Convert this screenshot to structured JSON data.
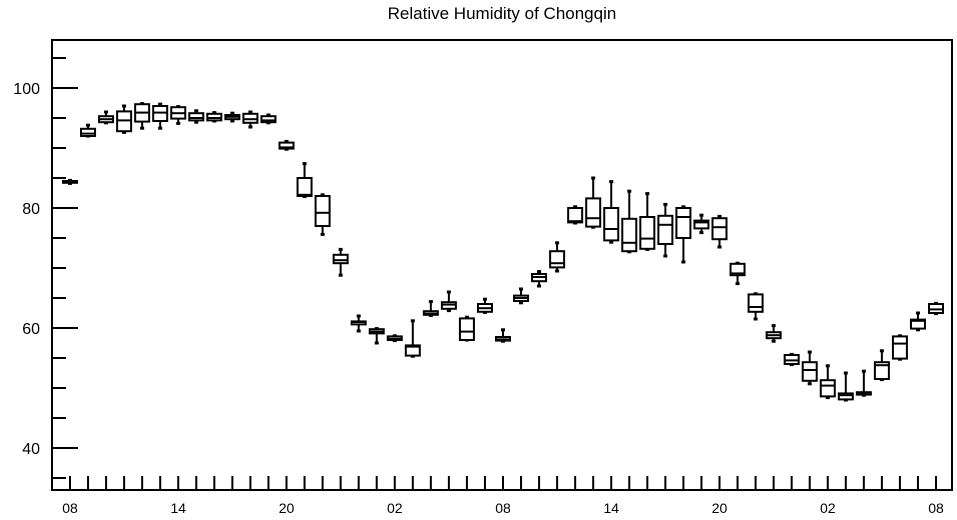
{
  "chart_data": {
    "type": "box",
    "title": "Relative Humidity of Chongqin",
    "xlabel": "",
    "ylabel": "",
    "ylim": [
      33,
      108
    ],
    "xlim": [
      0,
      48
    ],
    "grid": false,
    "y_ticks": [
      40,
      60,
      80,
      100
    ],
    "x_tick_labels": [
      {
        "pos": 0,
        "label": "08"
      },
      {
        "pos": 6,
        "label": "14"
      },
      {
        "pos": 12,
        "label": "20"
      },
      {
        "pos": 18,
        "label": "02"
      },
      {
        "pos": 24,
        "label": "08"
      },
      {
        "pos": 30,
        "label": "14"
      },
      {
        "pos": 36,
        "label": "20"
      },
      {
        "pos": 42,
        "label": "02"
      },
      {
        "pos": 48,
        "label": "08"
      }
    ],
    "boxes": [
      {
        "t": 0,
        "min": 84.1,
        "q1": 84.2,
        "med": 84.3,
        "q3": 84.5,
        "max": 84.6
      },
      {
        "t": 1,
        "min": 92.0,
        "q1": 92.0,
        "med": 92.4,
        "q3": 93.2,
        "max": 93.8
      },
      {
        "t": 2,
        "min": 94.2,
        "q1": 94.3,
        "med": 94.8,
        "q3": 95.3,
        "max": 96.0
      },
      {
        "t": 3,
        "min": 92.6,
        "q1": 92.8,
        "med": 94.6,
        "q3": 96.1,
        "max": 97.0
      },
      {
        "t": 4,
        "min": 93.3,
        "q1": 94.4,
        "med": 95.9,
        "q3": 97.3,
        "max": 97.4
      },
      {
        "t": 5,
        "min": 93.3,
        "q1": 94.5,
        "med": 95.9,
        "q3": 97.0,
        "max": 97.3
      },
      {
        "t": 6,
        "min": 94.1,
        "q1": 94.9,
        "med": 95.8,
        "q3": 96.8,
        "max": 96.9
      },
      {
        "t": 7,
        "min": 94.3,
        "q1": 94.6,
        "med": 95.0,
        "q3": 95.8,
        "max": 96.2
      },
      {
        "t": 8,
        "min": 94.5,
        "q1": 94.6,
        "med": 95.0,
        "q3": 95.7,
        "max": 95.9
      },
      {
        "t": 9,
        "min": 94.5,
        "q1": 94.8,
        "med": 95.2,
        "q3": 95.5,
        "max": 95.8
      },
      {
        "t": 10,
        "min": 93.5,
        "q1": 94.2,
        "med": 94.8,
        "q3": 95.7,
        "max": 96.0
      },
      {
        "t": 11,
        "min": 94.2,
        "q1": 94.3,
        "med": 94.6,
        "q3": 95.3,
        "max": 95.5
      },
      {
        "t": 12,
        "min": 89.8,
        "q1": 89.9,
        "med": 90.1,
        "q3": 90.9,
        "max": 91.1
      },
      {
        "t": 13,
        "min": 81.9,
        "q1": 82.0,
        "med": 82.2,
        "q3": 85.0,
        "max": 87.4
      },
      {
        "t": 14,
        "min": 75.6,
        "q1": 77.0,
        "med": 79.2,
        "q3": 82.0,
        "max": 82.2
      },
      {
        "t": 15,
        "min": 68.8,
        "q1": 70.8,
        "med": 71.3,
        "q3": 72.2,
        "max": 73.1
      },
      {
        "t": 16,
        "min": 59.5,
        "q1": 60.6,
        "med": 61.0,
        "q3": 61.1,
        "max": 62.0
      },
      {
        "t": 17,
        "min": 57.5,
        "q1": 59.1,
        "med": 59.4,
        "q3": 59.8,
        "max": 59.9
      },
      {
        "t": 18,
        "min": 57.9,
        "q1": 58.0,
        "med": 58.2,
        "q3": 58.6,
        "max": 58.7
      },
      {
        "t": 19,
        "min": 55.3,
        "q1": 55.4,
        "med": 56.9,
        "q3": 57.1,
        "max": 61.2
      },
      {
        "t": 20,
        "min": 62.1,
        "q1": 62.2,
        "med": 62.4,
        "q3": 62.8,
        "max": 64.4
      },
      {
        "t": 21,
        "min": 62.9,
        "q1": 63.2,
        "med": 63.9,
        "q3": 64.3,
        "max": 66.0
      },
      {
        "t": 22,
        "min": 58.0,
        "q1": 58.0,
        "med": 59.4,
        "q3": 61.6,
        "max": 61.8
      },
      {
        "t": 23,
        "min": 62.6,
        "q1": 62.7,
        "med": 63.3,
        "q3": 64.0,
        "max": 64.8
      },
      {
        "t": 24,
        "min": 57.8,
        "q1": 57.9,
        "med": 58.1,
        "q3": 58.5,
        "max": 59.7
      },
      {
        "t": 25,
        "min": 64.2,
        "q1": 64.5,
        "med": 65.0,
        "q3": 65.4,
        "max": 66.5
      },
      {
        "t": 26,
        "min": 67.0,
        "q1": 67.8,
        "med": 68.5,
        "q3": 69.0,
        "max": 69.4
      },
      {
        "t": 27,
        "min": 69.5,
        "q1": 70.1,
        "med": 70.8,
        "q3": 72.8,
        "max": 74.2
      },
      {
        "t": 28,
        "min": 77.5,
        "q1": 77.6,
        "med": 77.8,
        "q3": 80.0,
        "max": 80.2
      },
      {
        "t": 29,
        "min": 76.8,
        "q1": 76.9,
        "med": 78.3,
        "q3": 81.6,
        "max": 85.0
      },
      {
        "t": 30,
        "min": 74.3,
        "q1": 74.6,
        "med": 76.5,
        "q3": 80.0,
        "max": 84.4
      },
      {
        "t": 31,
        "min": 72.7,
        "q1": 72.8,
        "med": 74.2,
        "q3": 78.2,
        "max": 82.8
      },
      {
        "t": 32,
        "min": 73.1,
        "q1": 73.2,
        "med": 74.9,
        "q3": 78.5,
        "max": 82.4
      },
      {
        "t": 33,
        "min": 72.0,
        "q1": 74.0,
        "med": 77.2,
        "q3": 78.7,
        "max": 80.6
      },
      {
        "t": 34,
        "min": 71.0,
        "q1": 75.0,
        "med": 78.5,
        "q3": 80.0,
        "max": 80.2
      },
      {
        "t": 35,
        "min": 75.9,
        "q1": 76.6,
        "med": 77.6,
        "q3": 77.9,
        "max": 78.8
      },
      {
        "t": 36,
        "min": 73.5,
        "q1": 74.8,
        "med": 76.8,
        "q3": 78.3,
        "max": 78.6
      },
      {
        "t": 37,
        "min": 67.4,
        "q1": 68.8,
        "med": 69.1,
        "q3": 70.7,
        "max": 70.8
      },
      {
        "t": 38,
        "min": 61.5,
        "q1": 62.7,
        "med": 63.5,
        "q3": 65.6,
        "max": 65.7
      },
      {
        "t": 39,
        "min": 57.8,
        "q1": 58.3,
        "med": 58.8,
        "q3": 59.3,
        "max": 60.4
      },
      {
        "t": 40,
        "min": 53.9,
        "q1": 54.0,
        "med": 54.6,
        "q3": 55.5,
        "max": 55.6
      },
      {
        "t": 41,
        "min": 50.7,
        "q1": 51.2,
        "med": 53.0,
        "q3": 54.3,
        "max": 56.0
      },
      {
        "t": 42,
        "min": 48.4,
        "q1": 48.6,
        "med": 50.4,
        "q3": 51.3,
        "max": 53.7
      },
      {
        "t": 43,
        "min": 48.0,
        "q1": 48.1,
        "med": 48.8,
        "q3": 49.1,
        "max": 52.5
      },
      {
        "t": 44,
        "min": 48.8,
        "q1": 48.9,
        "med": 49.2,
        "q3": 49.3,
        "max": 52.8
      },
      {
        "t": 45,
        "min": 51.4,
        "q1": 51.5,
        "med": 53.8,
        "q3": 54.3,
        "max": 56.2
      },
      {
        "t": 46,
        "min": 54.8,
        "q1": 54.9,
        "med": 57.4,
        "q3": 58.6,
        "max": 58.7
      },
      {
        "t": 47,
        "min": 59.7,
        "q1": 59.9,
        "med": 61.2,
        "q3": 61.4,
        "max": 62.5
      },
      {
        "t": 48,
        "min": 62.4,
        "q1": 62.5,
        "med": 63.1,
        "q3": 64.0,
        "max": 64.1
      }
    ]
  }
}
